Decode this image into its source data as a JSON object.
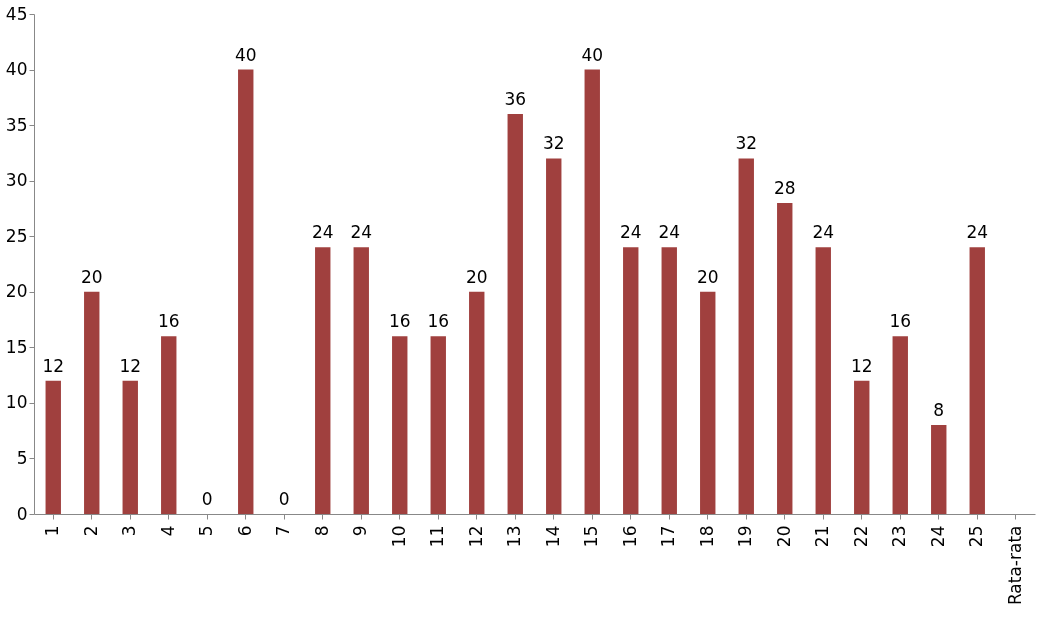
{
  "chart_data": {
    "type": "bar",
    "categories": [
      "1",
      "2",
      "3",
      "4",
      "5",
      "6",
      "7",
      "8",
      "9",
      "10",
      "11",
      "12",
      "13",
      "14",
      "15",
      "16",
      "17",
      "18",
      "19",
      "20",
      "21",
      "22",
      "23",
      "24",
      "25",
      "Rata-rata"
    ],
    "values": [
      12,
      20,
      12,
      16,
      0,
      40,
      0,
      24,
      24,
      16,
      16,
      20,
      36,
      32,
      40,
      24,
      24,
      20,
      32,
      28,
      24,
      12,
      16,
      8,
      24,
      null
    ],
    "color": "#a0403e",
    "ylim": [
      0,
      45
    ],
    "yticks": [
      0,
      5,
      10,
      15,
      20,
      25,
      30,
      35,
      40,
      45
    ],
    "grid": false,
    "data_labels": true
  }
}
